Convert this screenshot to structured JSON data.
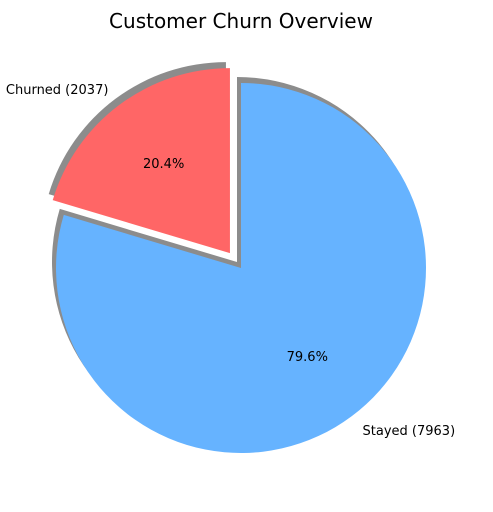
{
  "chart_data": {
    "type": "pie",
    "title": "Customer Churn Overview",
    "slices": [
      {
        "label": "Churned (2037)",
        "value": 2037,
        "percent_label": "20.4%",
        "color": "#ff6666",
        "exploded": true
      },
      {
        "label": "Stayed (7963)",
        "value": 7963,
        "percent_label": "79.6%",
        "color": "#66b3ff",
        "exploded": false
      }
    ],
    "start_angle_deg": 90,
    "shadow": true,
    "legend": "none"
  }
}
